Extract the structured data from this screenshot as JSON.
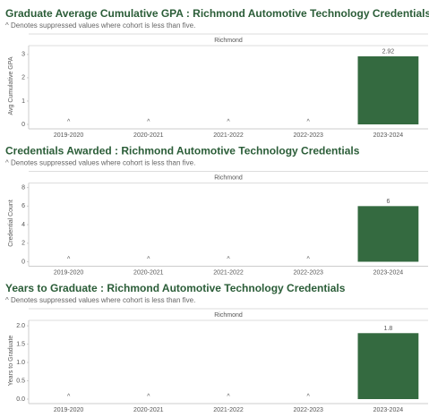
{
  "chart_data": [
    {
      "type": "bar",
      "title": "Graduate Average Cumulative GPA : Richmond Automotive Technology Credentials",
      "subtitle": "^ Denotes suppressed values where cohort is less than five.",
      "panel_label": "Richmond",
      "y_label": "Avg Cumulative GPA",
      "categories": [
        "2019-2020",
        "2020-2021",
        "2021-2022",
        "2022-2023",
        "2023-2024"
      ],
      "values": [
        null,
        null,
        null,
        null,
        2.92
      ],
      "value_labels": [
        "^",
        "^",
        "^",
        "^",
        "2.92"
      ],
      "color": "#346a40",
      "ylim": [
        0,
        3.3
      ],
      "yticks": [
        0,
        1,
        2,
        3
      ]
    },
    {
      "type": "bar",
      "title": "Credentials Awarded : Richmond Automotive Technology Credentials",
      "subtitle": "^ Denotes suppressed values where cohort is less than five.",
      "panel_label": "Richmond",
      "y_label": "Credential Count",
      "categories": [
        "2019-2020",
        "2020-2021",
        "2021-2022",
        "2022-2023",
        "2023-2024"
      ],
      "values": [
        null,
        null,
        null,
        null,
        6
      ],
      "value_labels": [
        "^",
        "^",
        "^",
        "^",
        "6"
      ],
      "color": "#346a40",
      "ylim": [
        0,
        8.3
      ],
      "yticks": [
        0,
        2,
        4,
        6,
        8
      ]
    },
    {
      "type": "bar",
      "title": "Years to Graduate : Richmond Automotive Technology Credentials",
      "subtitle": "^ Denotes suppressed values where cohort is less than five.",
      "panel_label": "Richmond",
      "y_label": "Years to Graduate",
      "categories": [
        "2019-2020",
        "2020-2021",
        "2021-2022",
        "2022-2023",
        "2023-2024"
      ],
      "values": [
        null,
        null,
        null,
        null,
        1.8
      ],
      "value_labels": [
        "^",
        "^",
        "^",
        "^",
        "1.8"
      ],
      "color": "#346a40",
      "ylim": [
        0,
        2.1
      ],
      "yticks": [
        {
          "value": 0,
          "label": "0.0"
        },
        {
          "value": 0.5,
          "label": "0.5"
        },
        {
          "value": 1,
          "label": "1.0"
        },
        {
          "value": 1.5,
          "label": "1.5"
        },
        {
          "value": 2,
          "label": "2.0"
        }
      ]
    }
  ]
}
